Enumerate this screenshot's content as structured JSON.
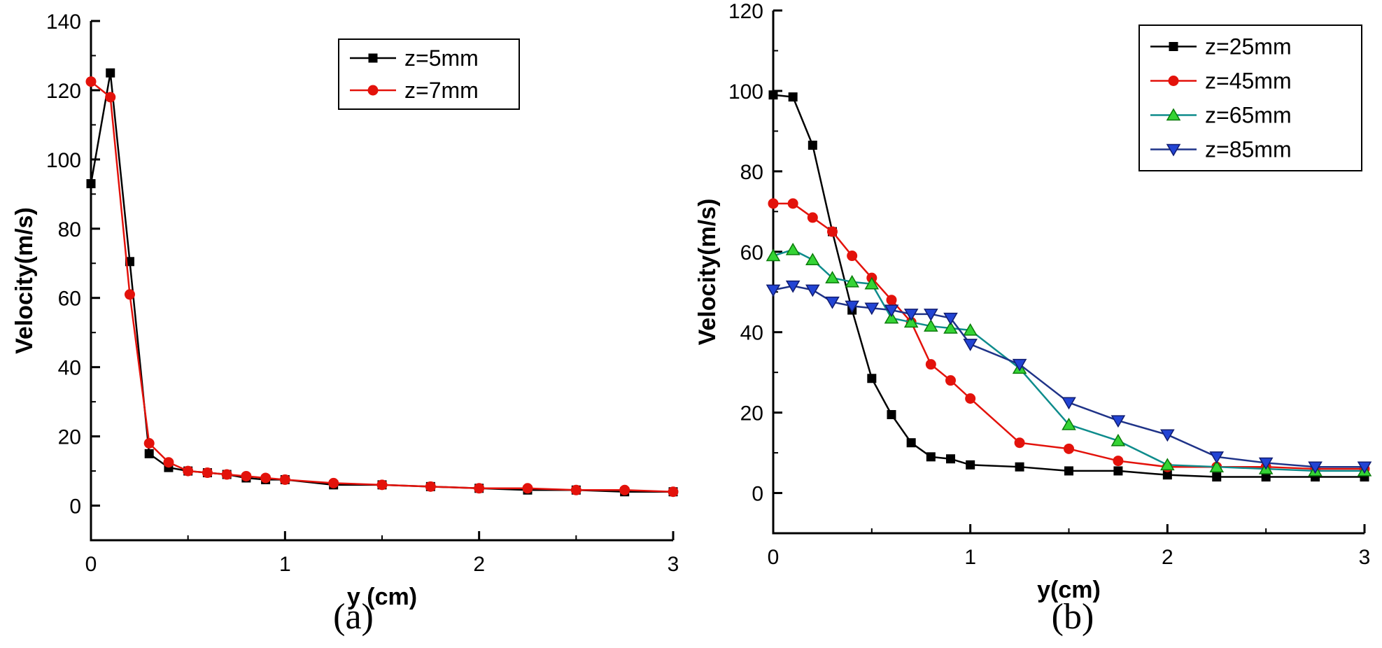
{
  "page": {
    "background": "#ffffff"
  },
  "captions": {
    "a": "(a)",
    "b": "(b)"
  },
  "chart_data": [
    {
      "id": "a",
      "type": "line",
      "title": "",
      "xlabel": "y (cm)",
      "ylabel": "Velocity(m/s)",
      "xlim": [
        0,
        3
      ],
      "ylim": [
        -10,
        140
      ],
      "xticks": [
        0,
        1,
        2,
        3
      ],
      "yticks": [
        0,
        20,
        40,
        60,
        80,
        100,
        120,
        140
      ],
      "x_minor_step": 0.5,
      "y_minor_step": 10,
      "grid": false,
      "legend_position": "inside-top-center-right",
      "x": [
        0,
        0.1,
        0.2,
        0.3,
        0.4,
        0.5,
        0.6,
        0.7,
        0.8,
        0.9,
        1.0,
        1.25,
        1.5,
        1.75,
        2.0,
        2.25,
        2.5,
        2.75,
        3.0
      ],
      "series": [
        {
          "name": "z=5mm",
          "marker": "square",
          "color": "#000000",
          "line_color": "#000000",
          "values": [
            93,
            125,
            70.5,
            15,
            11,
            10,
            9.5,
            9,
            8,
            7.5,
            7.5,
            6,
            6,
            5.5,
            5,
            4.5,
            4.5,
            4,
            4
          ]
        },
        {
          "name": "z=7mm",
          "marker": "circle",
          "color": "#e3120b",
          "line_color": "#e3120b",
          "values": [
            122.5,
            118,
            61,
            18,
            12.5,
            10,
            9.5,
            9,
            8.5,
            8,
            7.5,
            6.5,
            6,
            5.5,
            5,
            5,
            4.5,
            4.5,
            4
          ]
        }
      ]
    },
    {
      "id": "b",
      "type": "line",
      "title": "",
      "xlabel": "y(cm)",
      "ylabel": "Velocity(m/s)",
      "xlim": [
        0,
        3
      ],
      "ylim": [
        -10,
        120
      ],
      "xticks": [
        0,
        1,
        2,
        3
      ],
      "yticks": [
        0,
        20,
        40,
        60,
        80,
        100,
        120
      ],
      "x_minor_step": 0.5,
      "y_minor_step": 10,
      "grid": false,
      "legend_position": "inside-top-right",
      "x": [
        0,
        0.1,
        0.2,
        0.3,
        0.4,
        0.5,
        0.6,
        0.7,
        0.8,
        0.9,
        1.0,
        1.25,
        1.5,
        1.75,
        2.0,
        2.25,
        2.5,
        2.75,
        3.0
      ],
      "series": [
        {
          "name": "z=25mm",
          "marker": "square",
          "color": "#000000",
          "line_color": "#000000",
          "values": [
            99,
            98.5,
            86.5,
            65,
            45.5,
            28.5,
            19.5,
            12.5,
            9,
            8.5,
            7,
            6.5,
            5.5,
            5.5,
            4.5,
            4,
            4,
            4,
            4
          ]
        },
        {
          "name": "z=45mm",
          "marker": "circle",
          "color": "#e3120b",
          "line_color": "#e3120b",
          "values": [
            72,
            72,
            68.5,
            65,
            59,
            53.5,
            48,
            42.5,
            32,
            28,
            23.5,
            12.5,
            11,
            8,
            6.5,
            6.5,
            6.5,
            6,
            6
          ]
        },
        {
          "name": "z=65mm",
          "marker": "triangle-up",
          "color": "#35d435",
          "edge_color": "#0a7a0a",
          "line_color": "#0e8c8c",
          "values": [
            59,
            60.5,
            58,
            53.5,
            52.5,
            52,
            43.5,
            42.5,
            41.5,
            41,
            40.5,
            31,
            17,
            13,
            7,
            6.5,
            6,
            5.5,
            5.5
          ]
        },
        {
          "name": "z=85mm",
          "marker": "triangle-down",
          "color": "#2244d4",
          "edge_color": "#101c70",
          "line_color": "#1f3388",
          "values": [
            50.5,
            51.5,
            50.5,
            47.5,
            46.5,
            46,
            45.5,
            44.5,
            44.5,
            43.5,
            37,
            32,
            22.5,
            18,
            14.5,
            9,
            7.5,
            6.5,
            6.5
          ]
        }
      ]
    }
  ]
}
